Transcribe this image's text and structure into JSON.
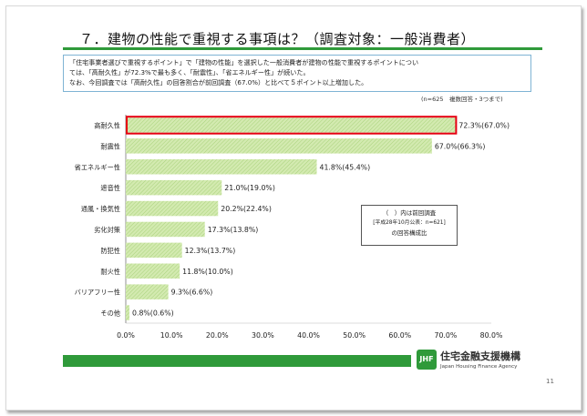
{
  "title": "７．建物の性能で重視する事項は？（調査対象：一般消費者）",
  "description": [
    "「住宅事業者選びで重視するポイント」で「建物の性能」を選択した一般消費者が建物の性能で重視するポイントについ",
    "ては、「高耐久性」が72.3%で最も多く、「耐震性」、「省エネルギー性」が続いた。",
    "なお、今回調査では「高耐久性」の回答割合が前回調査（67.0%）と比べて５ポイント以上増加した。"
  ],
  "note": "(n=625　複数回答・3つまで)",
  "legend": {
    "line1": "（　）内は前回調査",
    "line2": "[平成28年10月公表：n=621]",
    "line3": "の回答構成比"
  },
  "footer": {
    "org_name": "住宅金融支援機構",
    "org_name_en": "Japan Housing Finance Agency",
    "page_number": "11"
  },
  "colors": {
    "accent_green": "#2f9a3a",
    "bar_fill": "#d3eab0",
    "highlight_red": "#e60012"
  },
  "chart_data": {
    "type": "bar",
    "orientation": "horizontal",
    "categories": [
      "高耐久性",
      "耐震性",
      "省エネルギー性",
      "遮音性",
      "通風・換気性",
      "劣化対策",
      "防犯性",
      "耐火性",
      "バリアフリー性",
      "その他"
    ],
    "series": [
      {
        "values": [
          72.3,
          67.0,
          41.8,
          21.0,
          20.2,
          17.3,
          12.3,
          11.8,
          9.3,
          0.8
        ]
      },
      {
        "values": [
          67.0,
          66.3,
          45.4,
          19.0,
          22.4,
          13.8,
          13.7,
          10.0,
          6.6,
          0.6
        ]
      }
    ],
    "data_labels": [
      "72.3%(67.0%)",
      "67.0%(66.3%)",
      "41.8%(45.4%)",
      "21.0%(19.0%)",
      "20.2%(22.4%)",
      "17.3%(13.8%)",
      "12.3%(13.7%)",
      "11.8%(10.0%)",
      "9.3%(6.6%)",
      "0.8%(0.6%)"
    ],
    "xlim": [
      0,
      80
    ],
    "xticks": [
      0,
      10,
      20,
      30,
      40,
      50,
      60,
      70,
      80
    ],
    "xtick_labels": [
      "0.0%",
      "10.0%",
      "20.0%",
      "30.0%",
      "40.0%",
      "50.0%",
      "60.0%",
      "70.0%",
      "80.0%"
    ],
    "highlighted_category": "高耐久性",
    "grid": false,
    "title": "",
    "xlabel": "",
    "ylabel": ""
  }
}
